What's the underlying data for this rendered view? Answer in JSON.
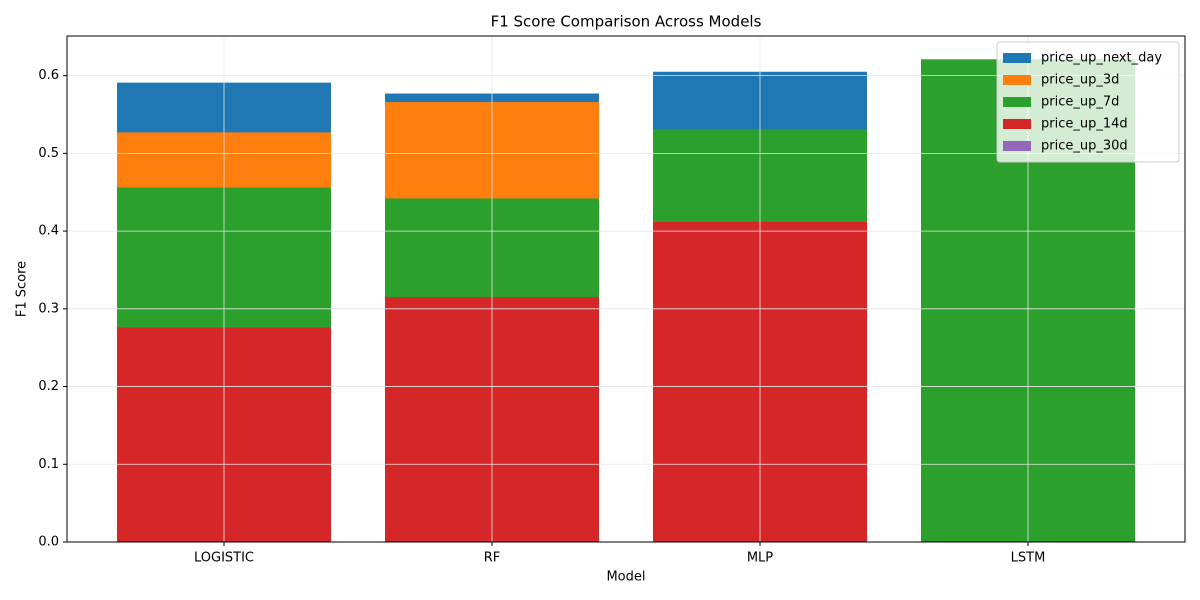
{
  "chart_data": {
    "type": "bar",
    "title": "F1 Score Comparison Across Models",
    "x_label": "Model",
    "y_label": "F1 Score",
    "categories": [
      "LOGISTIC",
      "RF",
      "MLP",
      "LSTM"
    ],
    "series": [
      {
        "name": "price_up_next_day",
        "color": "#1f77b4",
        "values": [
          0.591,
          0.577,
          0.605,
          null
        ]
      },
      {
        "name": "price_up_3d",
        "color": "#ff7f0e",
        "values": [
          0.527,
          0.566,
          null,
          null
        ]
      },
      {
        "name": "price_up_7d",
        "color": "#2ca02c",
        "values": [
          0.456,
          0.442,
          0.531,
          0.621
        ]
      },
      {
        "name": "price_up_14d",
        "color": "#d62728",
        "values": [
          0.276,
          0.315,
          0.412,
          null
        ]
      },
      {
        "name": "price_up_30d",
        "color": "#9467bd",
        "values": [
          null,
          null,
          null,
          null
        ]
      }
    ],
    "ylim": [
      0,
      0.651
    ],
    "yticks": [
      {
        "value": 0,
        "label": "0.0"
      },
      0.1,
      0.2,
      0.3,
      0.4,
      0.5,
      0.6
    ],
    "grid": true,
    "legend": "upper right"
  }
}
